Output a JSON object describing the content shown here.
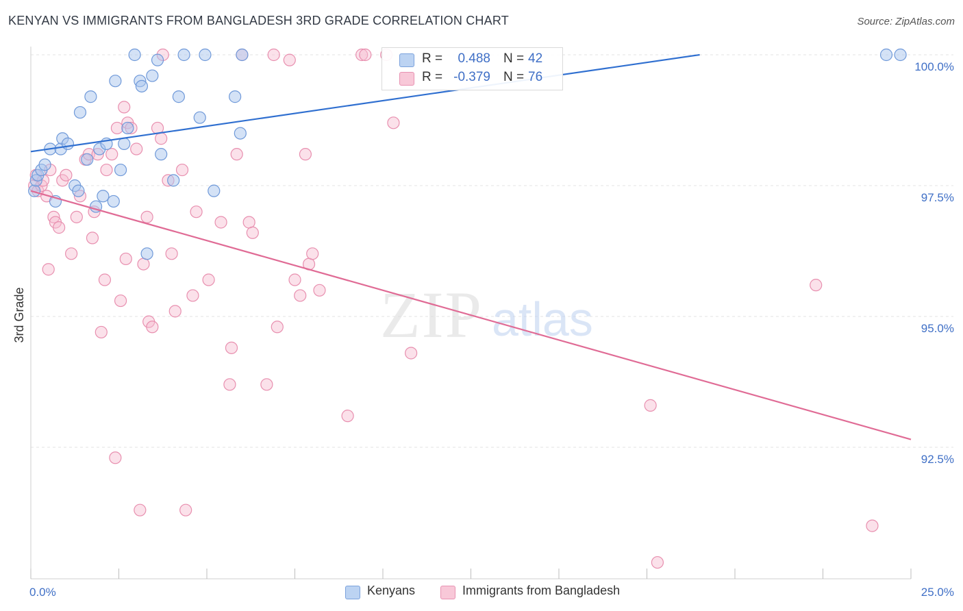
{
  "title": "KENYAN VS IMMIGRANTS FROM BANGLADESH 3RD GRADE CORRELATION CHART",
  "source": "Source: ZipAtlas.com",
  "watermark": {
    "zip": "ZIP",
    "atlas": "atlas"
  },
  "legend": {
    "r_label": "R =",
    "n_label": "N =",
    "blue": {
      "r": "0.488",
      "n": "42"
    },
    "pink": {
      "r": "-0.379",
      "n": "76"
    }
  },
  "bottom_legend": {
    "blue": "Kenyans",
    "pink": "Immigrants from Bangladesh"
  },
  "colors": {
    "blue_fill": "#a9c5ee",
    "blue_stroke": "#6f99d9",
    "blue_line": "#2f6fd0",
    "pink_fill": "#f6bcd0",
    "pink_stroke": "#e88faf",
    "pink_line": "#e06b95",
    "tick_label": "#3f6fc6",
    "grid": "#e3e3e3"
  },
  "chart_data": {
    "type": "scatter",
    "title": "KENYAN VS IMMIGRANTS FROM BANGLADESH 3RD GRADE CORRELATION CHART",
    "xlabel": "",
    "ylabel": "3rd Grade",
    "xlim": [
      0,
      25
    ],
    "ylim": [
      90.2,
      100.2
    ],
    "x_tick_labels": [
      {
        "x": 0,
        "label": "0.0%"
      },
      {
        "x": 25,
        "label": "25.0%"
      }
    ],
    "x_minor_ticks": [
      0,
      2.5,
      5,
      7.5,
      10,
      12.5,
      15,
      17.5,
      20,
      22.5,
      25
    ],
    "y_ticks": [
      {
        "y": 100.0,
        "label": "100.0%"
      },
      {
        "y": 97.5,
        "label": "97.5%"
      },
      {
        "y": 95.0,
        "label": "95.0%"
      },
      {
        "y": 92.5,
        "label": "92.5%"
      }
    ],
    "grid": true,
    "series": [
      {
        "name": "Kenyans",
        "color": "#a9c5ee",
        "points": [
          [
            0.1,
            97.4
          ],
          [
            0.15,
            97.6
          ],
          [
            0.2,
            97.7
          ],
          [
            0.3,
            97.8
          ],
          [
            0.4,
            97.9
          ],
          [
            0.55,
            98.2
          ],
          [
            0.7,
            97.2
          ],
          [
            0.85,
            98.2
          ],
          [
            0.9,
            98.4
          ],
          [
            1.05,
            98.3
          ],
          [
            1.25,
            97.5
          ],
          [
            1.35,
            97.4
          ],
          [
            1.4,
            98.9
          ],
          [
            1.6,
            98.0
          ],
          [
            1.7,
            99.2
          ],
          [
            1.85,
            97.1
          ],
          [
            1.95,
            98.2
          ],
          [
            2.05,
            97.3
          ],
          [
            2.15,
            98.3
          ],
          [
            2.35,
            97.2
          ],
          [
            2.4,
            99.5
          ],
          [
            2.55,
            97.8
          ],
          [
            2.65,
            98.3
          ],
          [
            2.75,
            98.6
          ],
          [
            2.95,
            100.0
          ],
          [
            3.1,
            99.5
          ],
          [
            3.15,
            99.4
          ],
          [
            3.3,
            96.2
          ],
          [
            3.45,
            99.6
          ],
          [
            3.6,
            99.9
          ],
          [
            3.7,
            98.1
          ],
          [
            4.05,
            97.6
          ],
          [
            4.2,
            99.2
          ],
          [
            4.35,
            100.0
          ],
          [
            4.8,
            98.8
          ],
          [
            4.95,
            100.0
          ],
          [
            5.2,
            97.4
          ],
          [
            5.8,
            99.2
          ],
          [
            5.95,
            98.5
          ],
          [
            6.0,
            100.0
          ],
          [
            24.3,
            100.0
          ],
          [
            24.7,
            100.0
          ]
        ],
        "trend": {
          "x": [
            0,
            19
          ],
          "y": [
            98.15,
            100.0
          ]
        }
      },
      {
        "name": "Immigrants from Bangladesh",
        "color": "#f6bcd0",
        "points": [
          [
            0.1,
            97.5
          ],
          [
            0.15,
            97.7
          ],
          [
            0.2,
            97.4
          ],
          [
            0.3,
            97.5
          ],
          [
            0.35,
            97.6
          ],
          [
            0.45,
            97.3
          ],
          [
            0.5,
            95.9
          ],
          [
            0.55,
            97.8
          ],
          [
            0.65,
            96.9
          ],
          [
            0.7,
            96.8
          ],
          [
            0.8,
            96.7
          ],
          [
            0.9,
            97.6
          ],
          [
            1.0,
            97.7
          ],
          [
            1.15,
            96.2
          ],
          [
            1.3,
            96.9
          ],
          [
            1.4,
            97.3
          ],
          [
            1.55,
            98.0
          ],
          [
            1.65,
            98.1
          ],
          [
            1.75,
            96.5
          ],
          [
            1.8,
            97.0
          ],
          [
            1.9,
            98.1
          ],
          [
            2.0,
            94.7
          ],
          [
            2.1,
            95.7
          ],
          [
            2.15,
            97.8
          ],
          [
            2.3,
            98.1
          ],
          [
            2.4,
            92.3
          ],
          [
            2.45,
            98.6
          ],
          [
            2.55,
            95.3
          ],
          [
            2.65,
            99.0
          ],
          [
            2.7,
            96.1
          ],
          [
            2.75,
            98.7
          ],
          [
            2.85,
            98.6
          ],
          [
            3.0,
            98.2
          ],
          [
            3.1,
            91.3
          ],
          [
            3.2,
            96.0
          ],
          [
            3.3,
            96.9
          ],
          [
            3.35,
            94.9
          ],
          [
            3.45,
            94.8
          ],
          [
            3.6,
            98.6
          ],
          [
            3.7,
            98.4
          ],
          [
            3.75,
            100.0
          ],
          [
            3.9,
            97.6
          ],
          [
            4.0,
            96.2
          ],
          [
            4.1,
            95.1
          ],
          [
            4.3,
            97.8
          ],
          [
            4.4,
            91.3
          ],
          [
            4.6,
            95.4
          ],
          [
            4.7,
            97.0
          ],
          [
            5.05,
            95.7
          ],
          [
            5.4,
            96.8
          ],
          [
            5.65,
            93.7
          ],
          [
            5.7,
            94.4
          ],
          [
            5.85,
            98.1
          ],
          [
            6.0,
            100.0
          ],
          [
            6.2,
            96.8
          ],
          [
            6.3,
            96.6
          ],
          [
            6.7,
            93.7
          ],
          [
            6.9,
            100.0
          ],
          [
            7.0,
            94.8
          ],
          [
            7.35,
            99.9
          ],
          [
            7.5,
            95.7
          ],
          [
            7.65,
            95.4
          ],
          [
            7.8,
            98.1
          ],
          [
            7.9,
            96.0
          ],
          [
            8.0,
            96.2
          ],
          [
            8.2,
            95.5
          ],
          [
            9.0,
            93.1
          ],
          [
            9.4,
            100.0
          ],
          [
            9.5,
            100.0
          ],
          [
            10.1,
            100.0
          ],
          [
            10.3,
            98.7
          ],
          [
            10.8,
            94.3
          ],
          [
            17.6,
            93.3
          ],
          [
            17.8,
            90.3
          ],
          [
            22.3,
            95.6
          ],
          [
            23.9,
            91.0
          ]
        ],
        "trend": {
          "x": [
            0,
            25
          ],
          "y": [
            97.4,
            92.65
          ]
        }
      }
    ]
  }
}
